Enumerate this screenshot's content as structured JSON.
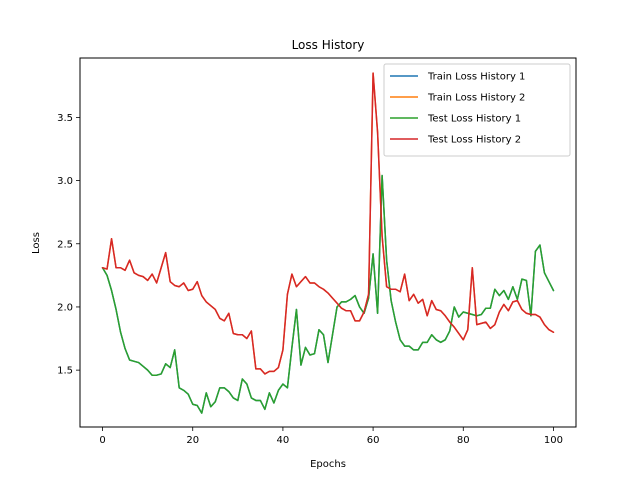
{
  "chart_data": {
    "type": "line",
    "title": "Loss History",
    "xlabel": "Epochs",
    "ylabel": "Loss",
    "xlim": [
      -5,
      105
    ],
    "ylim": [
      1.05,
      3.97
    ],
    "xticks": [
      0,
      20,
      40,
      60,
      80,
      100
    ],
    "yticks": [
      1.5,
      2.0,
      2.5,
      3.0,
      3.5
    ],
    "ytick_labels": [
      "1.5",
      "2.0",
      "2.5",
      "3.0",
      "3.5"
    ],
    "grid": false,
    "legend_position": "top-right",
    "x": [
      0,
      1,
      2,
      3,
      4,
      5,
      6,
      7,
      8,
      9,
      10,
      11,
      12,
      13,
      14,
      15,
      16,
      17,
      18,
      19,
      20,
      21,
      22,
      23,
      24,
      25,
      26,
      27,
      28,
      29,
      30,
      31,
      32,
      33,
      34,
      35,
      36,
      37,
      38,
      39,
      40,
      41,
      42,
      43,
      44,
      45,
      46,
      47,
      48,
      49,
      50,
      51,
      52,
      53,
      54,
      55,
      56,
      57,
      58,
      59,
      60,
      61,
      62,
      63,
      64,
      65,
      66,
      67,
      68,
      69,
      70,
      71,
      72,
      73,
      74,
      75,
      76,
      77,
      78,
      79,
      80,
      81,
      82,
      83,
      84,
      85,
      86,
      87,
      88,
      89,
      90,
      91,
      92,
      93,
      94,
      95,
      96,
      97,
      98,
      99,
      100
    ],
    "series": [
      {
        "name": "Train Loss History 1",
        "color": "#1f77b4",
        "values": [
          2.31,
          2.25,
          2.13,
          1.98,
          1.8,
          1.67,
          1.58,
          1.57,
          1.56,
          1.53,
          1.5,
          1.46,
          1.46,
          1.47,
          1.55,
          1.52,
          1.66,
          1.36,
          1.34,
          1.31,
          1.23,
          1.22,
          1.16,
          1.32,
          1.21,
          1.25,
          1.36,
          1.36,
          1.33,
          1.28,
          1.26,
          1.43,
          1.39,
          1.28,
          1.26,
          1.26,
          1.19,
          1.32,
          1.24,
          1.34,
          1.39,
          1.36,
          1.68,
          1.98,
          1.54,
          1.68,
          1.62,
          1.63,
          1.82,
          1.78,
          1.56,
          1.78,
          2.0,
          2.04,
          2.04,
          2.06,
          2.09,
          2.0,
          1.95,
          2.07,
          2.42,
          1.95,
          3.04,
          2.37,
          2.05,
          1.88,
          1.74,
          1.69,
          1.69,
          1.66,
          1.66,
          1.72,
          1.72,
          1.78,
          1.74,
          1.72,
          1.74,
          1.81,
          2.0,
          1.92,
          1.96,
          1.95,
          1.94,
          1.93,
          1.94,
          1.99,
          1.99,
          2.14,
          2.09,
          2.13,
          2.06,
          2.16,
          2.06,
          2.22,
          2.21,
          1.93,
          2.44,
          2.49,
          2.27,
          2.2,
          2.13
        ]
      },
      {
        "name": "Train Loss History 2",
        "color": "#ff7f0e",
        "values": [
          2.31,
          2.3,
          2.54,
          2.31,
          2.31,
          2.29,
          2.37,
          2.27,
          2.25,
          2.24,
          2.21,
          2.26,
          2.19,
          2.31,
          2.43,
          2.2,
          2.17,
          2.16,
          2.19,
          2.13,
          2.14,
          2.2,
          2.09,
          2.04,
          2.01,
          1.98,
          1.91,
          1.89,
          1.95,
          1.79,
          1.78,
          1.78,
          1.75,
          1.81,
          1.51,
          1.51,
          1.47,
          1.49,
          1.49,
          1.52,
          1.66,
          2.1,
          2.26,
          2.16,
          2.2,
          2.24,
          2.19,
          2.19,
          2.16,
          2.14,
          2.11,
          2.07,
          2.03,
          1.99,
          1.97,
          1.97,
          1.89,
          1.89,
          1.96,
          2.1,
          3.85,
          3.38,
          2.56,
          2.16,
          2.14,
          2.14,
          2.12,
          2.26,
          2.05,
          2.1,
          2.03,
          2.06,
          1.93,
          2.05,
          1.98,
          1.97,
          1.93,
          1.88,
          1.84,
          1.79,
          1.74,
          1.82,
          2.31,
          1.86,
          1.87,
          1.88,
          1.83,
          1.86,
          1.96,
          2.02,
          1.97,
          2.04,
          2.05,
          1.98,
          1.95,
          1.94,
          1.94,
          1.92,
          1.86,
          1.82,
          1.8
        ]
      },
      {
        "name": "Test Loss History 1",
        "color": "#2ca02c",
        "values": [
          2.31,
          2.25,
          2.13,
          1.98,
          1.8,
          1.67,
          1.58,
          1.57,
          1.56,
          1.53,
          1.5,
          1.46,
          1.46,
          1.47,
          1.55,
          1.52,
          1.66,
          1.36,
          1.34,
          1.31,
          1.23,
          1.22,
          1.16,
          1.32,
          1.21,
          1.25,
          1.36,
          1.36,
          1.33,
          1.28,
          1.26,
          1.43,
          1.39,
          1.28,
          1.26,
          1.26,
          1.19,
          1.32,
          1.24,
          1.34,
          1.39,
          1.36,
          1.68,
          1.98,
          1.54,
          1.68,
          1.62,
          1.63,
          1.82,
          1.78,
          1.56,
          1.78,
          2.0,
          2.04,
          2.04,
          2.06,
          2.09,
          2.0,
          1.95,
          2.07,
          2.42,
          1.95,
          3.04,
          2.37,
          2.05,
          1.88,
          1.74,
          1.69,
          1.69,
          1.66,
          1.66,
          1.72,
          1.72,
          1.78,
          1.74,
          1.72,
          1.74,
          1.81,
          2.0,
          1.92,
          1.96,
          1.95,
          1.94,
          1.93,
          1.94,
          1.99,
          1.99,
          2.14,
          2.09,
          2.13,
          2.06,
          2.16,
          2.06,
          2.22,
          2.21,
          1.93,
          2.44,
          2.49,
          2.27,
          2.2,
          2.13
        ]
      },
      {
        "name": "Test Loss History 2",
        "color": "#d62728",
        "values": [
          2.31,
          2.3,
          2.54,
          2.31,
          2.31,
          2.29,
          2.37,
          2.27,
          2.25,
          2.24,
          2.21,
          2.26,
          2.19,
          2.31,
          2.43,
          2.2,
          2.17,
          2.16,
          2.19,
          2.13,
          2.14,
          2.2,
          2.09,
          2.04,
          2.01,
          1.98,
          1.91,
          1.89,
          1.95,
          1.79,
          1.78,
          1.78,
          1.75,
          1.81,
          1.51,
          1.51,
          1.47,
          1.49,
          1.49,
          1.52,
          1.66,
          2.1,
          2.26,
          2.16,
          2.2,
          2.24,
          2.19,
          2.19,
          2.16,
          2.14,
          2.11,
          2.07,
          2.03,
          1.99,
          1.97,
          1.97,
          1.89,
          1.89,
          1.96,
          2.1,
          3.85,
          3.38,
          2.56,
          2.16,
          2.14,
          2.14,
          2.12,
          2.26,
          2.05,
          2.1,
          2.03,
          2.06,
          1.93,
          2.05,
          1.98,
          1.97,
          1.93,
          1.88,
          1.84,
          1.79,
          1.74,
          1.82,
          2.31,
          1.86,
          1.87,
          1.88,
          1.83,
          1.86,
          1.96,
          2.02,
          1.97,
          2.04,
          2.05,
          1.98,
          1.95,
          1.94,
          1.94,
          1.92,
          1.86,
          1.82,
          1.8
        ]
      }
    ]
  }
}
